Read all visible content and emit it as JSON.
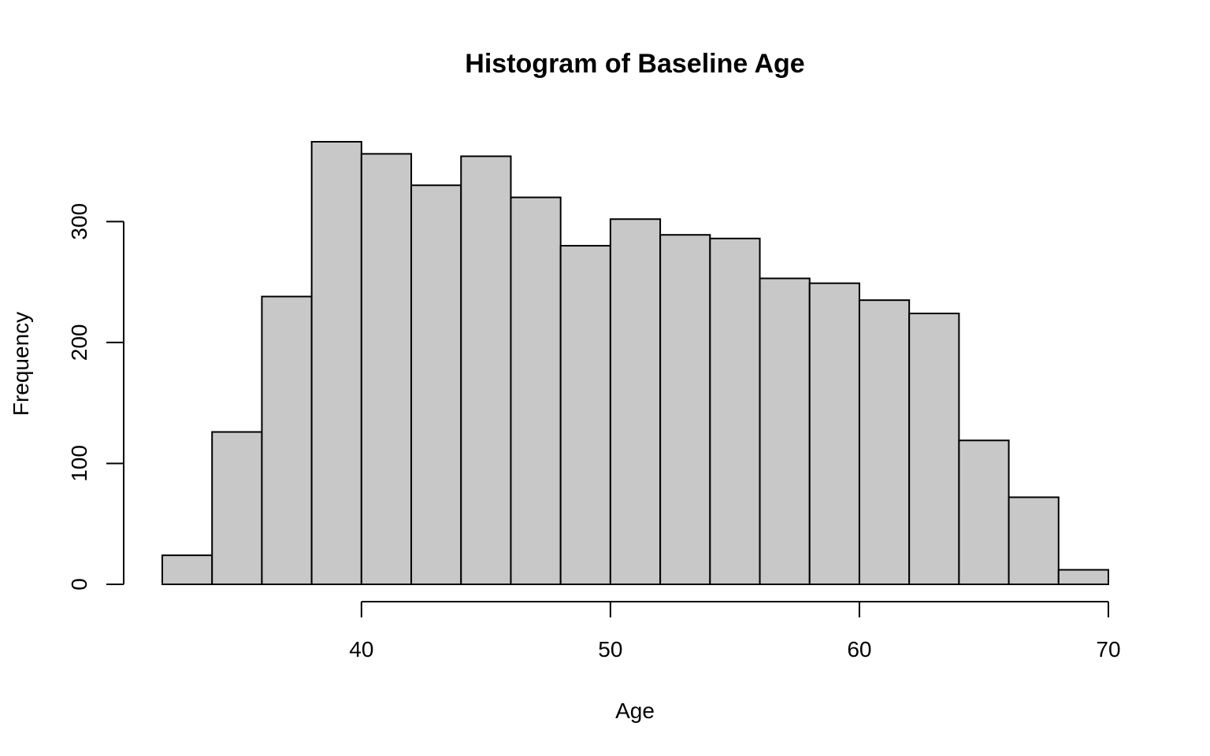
{
  "chart_data": {
    "type": "bar",
    "subtype": "histogram",
    "title": "Histogram of Baseline Age",
    "xlabel": "Age",
    "ylabel": "Frequency",
    "bins": [
      {
        "start": 32,
        "end": 34,
        "count": 24
      },
      {
        "start": 34,
        "end": 36,
        "count": 126
      },
      {
        "start": 36,
        "end": 38,
        "count": 238
      },
      {
        "start": 38,
        "end": 40,
        "count": 366
      },
      {
        "start": 40,
        "end": 42,
        "count": 356
      },
      {
        "start": 42,
        "end": 44,
        "count": 330
      },
      {
        "start": 44,
        "end": 46,
        "count": 354
      },
      {
        "start": 46,
        "end": 48,
        "count": 320
      },
      {
        "start": 48,
        "end": 50,
        "count": 280
      },
      {
        "start": 50,
        "end": 52,
        "count": 302
      },
      {
        "start": 52,
        "end": 54,
        "count": 289
      },
      {
        "start": 54,
        "end": 56,
        "count": 286
      },
      {
        "start": 56,
        "end": 58,
        "count": 253
      },
      {
        "start": 58,
        "end": 60,
        "count": 249
      },
      {
        "start": 60,
        "end": 62,
        "count": 235
      },
      {
        "start": 62,
        "end": 64,
        "count": 224
      },
      {
        "start": 64,
        "end": 66,
        "count": 119
      },
      {
        "start": 66,
        "end": 68,
        "count": 72
      },
      {
        "start": 68,
        "end": 70,
        "count": 12
      }
    ],
    "x_ticks": [
      40,
      50,
      60,
      70
    ],
    "y_ticks": [
      0,
      100,
      200,
      300
    ],
    "xlim": [
      32,
      70
    ],
    "ylim": [
      0,
      366
    ],
    "grid": false,
    "legend": "none",
    "colors": {
      "bar_fill": "#c8c8c8",
      "bar_stroke": "#000000",
      "axis": "#000000",
      "text": "#000000"
    }
  }
}
